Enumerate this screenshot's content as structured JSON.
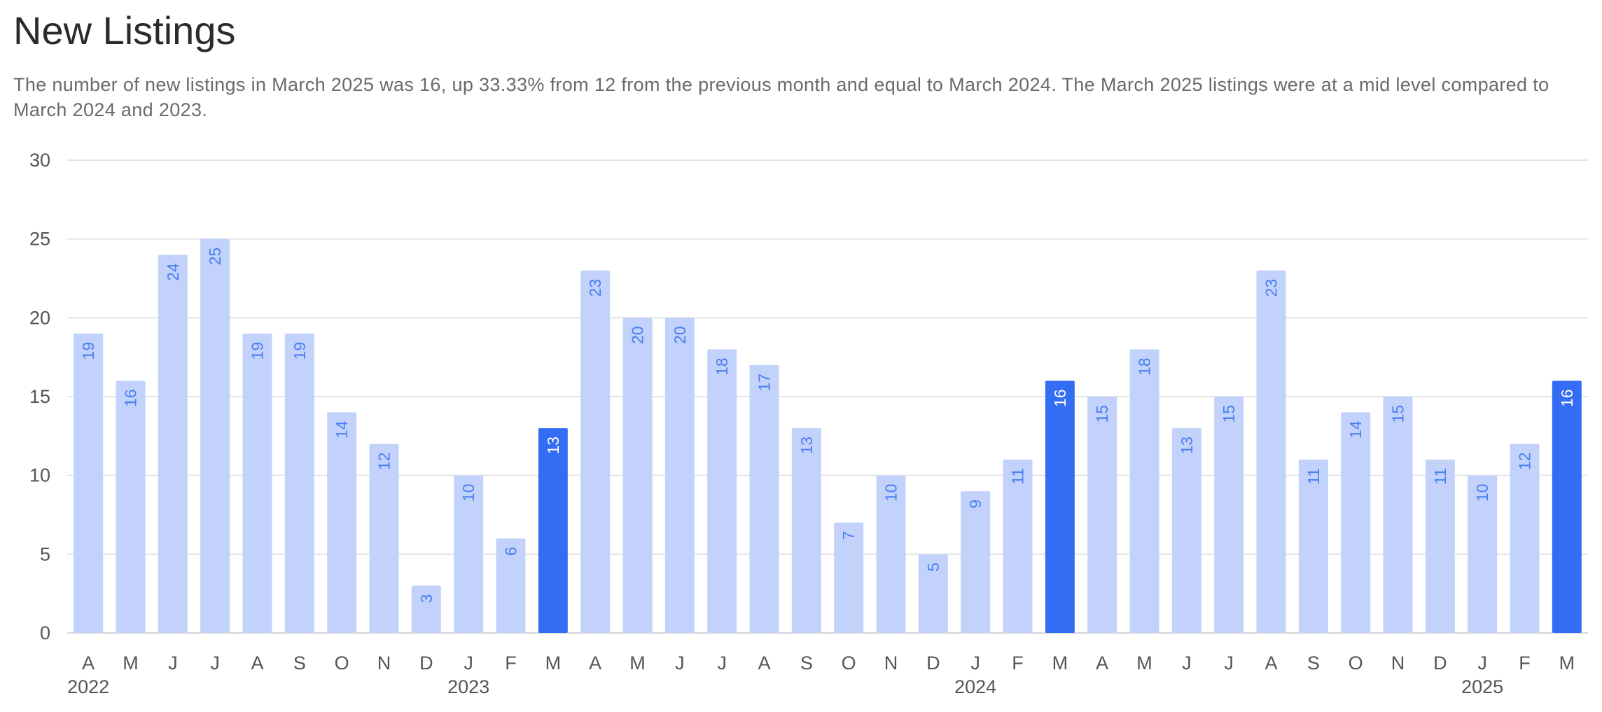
{
  "header": {
    "title": "New Listings",
    "subtitle": "The number of new listings in March 2025 was 16, up 33.33% from 12 from the previous month and equal to March 2024. The March 2025 listings were at a mid level compared to March 2024 and 2023."
  },
  "colors": {
    "bar": "#c2d2fb",
    "bar_highlight": "#336df4",
    "label_on_bar": "#4a7ef0",
    "label_on_highlight": "#ffffff",
    "grid": "#e4e4e4"
  },
  "chart_data": {
    "type": "bar",
    "title": "New Listings",
    "xlabel": "",
    "ylabel": "",
    "ylim": [
      0,
      30
    ],
    "yticks": [
      0,
      5,
      10,
      15,
      20,
      25,
      30
    ],
    "grid": true,
    "categories": [
      "A",
      "M",
      "J",
      "J",
      "A",
      "S",
      "O",
      "N",
      "D",
      "J",
      "F",
      "M",
      "A",
      "M",
      "J",
      "J",
      "A",
      "S",
      "O",
      "N",
      "D",
      "J",
      "F",
      "M",
      "A",
      "M",
      "J",
      "J",
      "A",
      "S",
      "O",
      "N",
      "D",
      "J",
      "F",
      "M"
    ],
    "values": [
      19,
      16,
      24,
      25,
      19,
      19,
      14,
      12,
      3,
      10,
      6,
      13,
      23,
      20,
      20,
      18,
      17,
      13,
      7,
      10,
      5,
      9,
      11,
      16,
      15,
      18,
      13,
      15,
      23,
      11,
      14,
      15,
      11,
      10,
      12,
      16
    ],
    "highlighted_indices": [
      11,
      23,
      35
    ],
    "year_labels": [
      {
        "index": 0,
        "label": "2022"
      },
      {
        "index": 9,
        "label": "2023"
      },
      {
        "index": 21,
        "label": "2024"
      },
      {
        "index": 33,
        "label": "2025"
      }
    ]
  }
}
